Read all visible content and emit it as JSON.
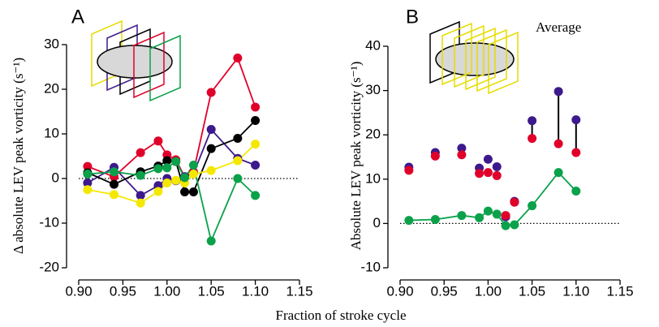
{
  "xlabel": "Fraction of stroke cycle",
  "chart_data": [
    {
      "type": "line",
      "panel": "A",
      "ylabel": "Δ absolute LEV peak vorticity (s⁻¹)",
      "x": [
        0.91,
        0.94,
        0.97,
        0.99,
        1.0,
        1.01,
        1.02,
        1.03,
        1.05,
        1.08,
        1.1
      ],
      "series": [
        {
          "color": "#e0002a",
          "values": [
            2.7,
            0.4,
            5.8,
            8.4,
            5.3,
            4.2,
            0.4,
            1.5,
            19.3,
            27,
            16
          ]
        },
        {
          "color": "#3d1a8c",
          "values": [
            -1,
            2.5,
            -3.8,
            -1.6,
            0,
            -0.5,
            0.4,
            1.1,
            11,
            4.5,
            3
          ]
        },
        {
          "color": "#000000",
          "values": [
            1.3,
            -1.3,
            1.5,
            2.8,
            4,
            3.8,
            -3,
            -3,
            6.7,
            9,
            13
          ]
        },
        {
          "color": "#f5e800",
          "values": [
            -2.5,
            -3.6,
            -5.5,
            -2.9,
            -1,
            -0.4,
            -1,
            1,
            1.8,
            4,
            7.7
          ]
        },
        {
          "color": "#0aa14a",
          "values": [
            1,
            1.5,
            0.7,
            2.2,
            2.4,
            3.8,
            0.2,
            3,
            -14,
            0,
            -3.8
          ]
        }
      ],
      "xlim": [
        0.9,
        1.15
      ],
      "xticks": [
        {
          "value": 0.9,
          "label": "0.90"
        },
        0.95,
        {
          "value": 1,
          "label": "1.00"
        },
        1.05,
        {
          "value": 1.1,
          "label": "1.10"
        },
        1.15
      ],
      "ylim": [
        -20,
        30
      ],
      "yticks": [
        -20,
        -10,
        0,
        10,
        20,
        30
      ],
      "zero_line": true
    },
    {
      "type": "scatter",
      "panel": "B",
      "annotation": "Average",
      "ylabel": "Absolute LEV peak vorticity (s⁻¹)",
      "x": [
        0.91,
        0.94,
        0.97,
        0.99,
        1.0,
        1.01,
        1.02,
        1.03,
        1.05,
        1.08,
        1.1
      ],
      "series": [
        {
          "color": "#3d1a8c",
          "connected": false,
          "values": [
            12.7,
            16,
            17,
            12.5,
            14.5,
            12.8,
            1.5,
            5,
            23.2,
            29.8,
            23.4
          ]
        },
        {
          "color": "#e0002a",
          "connected": false,
          "values": [
            12,
            15.2,
            15.5,
            11.3,
            11.5,
            10.8,
            1.8,
            4.8,
            19.2,
            18,
            16
          ]
        },
        {
          "color": "#0aa14a",
          "connected": true,
          "values": [
            0.7,
            0.9,
            1.8,
            1.3,
            2.8,
            2.1,
            -0.5,
            -0.3,
            4,
            11.5,
            7.3
          ]
        }
      ],
      "connectors": {
        "color": "#000000",
        "indices": [
          8,
          9,
          10
        ]
      },
      "xlim": [
        0.9,
        1.15
      ],
      "xticks": [
        {
          "value": 0.9,
          "label": "0.90"
        },
        0.95,
        {
          "value": 1,
          "label": "1.00"
        },
        1.05,
        {
          "value": 1.1,
          "label": "1.10"
        },
        1.15
      ],
      "ylim": [
        -10,
        40
      ],
      "yticks": [
        -10,
        0,
        10,
        20,
        30,
        40
      ],
      "zero_line": true
    }
  ]
}
